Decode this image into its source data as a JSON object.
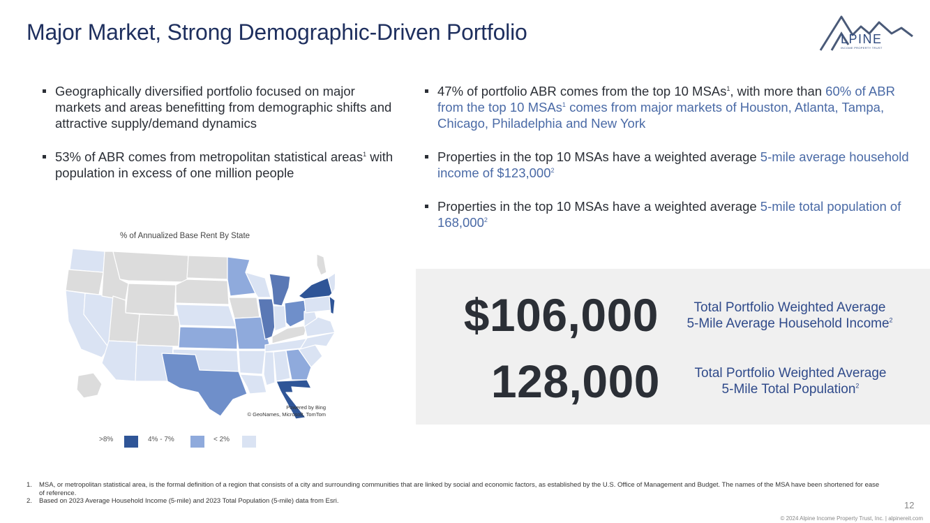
{
  "header": {
    "title": "Major Market, Strong Demographic-Driven Portfolio"
  },
  "logo": {
    "word": "LPINE",
    "subtitle": "INCOME PROPERTY TRUST"
  },
  "left_bullets": [
    {
      "text": "Geographically diversified portfolio focused on major markets and areas benefitting from demographic shifts and attractive supply/demand dynamics"
    },
    {
      "text": "53% of ABR comes from metropolitan statistical areas",
      "sup": "1",
      "text_after": " with population in excess of one million people"
    }
  ],
  "right_bullets": [
    {
      "part1": "47% of portfolio ABR comes from the top 10 MSAs",
      "sup1": "1",
      "part2": ", with more than ",
      "hl1": "60% of ABR from the top 10 MSAs",
      "sup2": "1",
      "hl2": " comes from major markets of Houston, Atlanta, Tampa, Chicago, Philadelphia and New York"
    },
    {
      "part1": "Properties in the top 10 MSAs have a weighted average ",
      "hl1": "5-mile average household income of $123,000",
      "sup1": "2"
    },
    {
      "part1": "Properties in the top 10 MSAs have a weighted average ",
      "hl1": "5-mile total population of 168,000",
      "sup1": "2"
    }
  ],
  "map": {
    "title": "% of Annualized Base Rent By State",
    "credit_line1": "Powered by Bing",
    "credit_line2": "© GeoNames, Microsoft, TomTom",
    "colors": {
      "gt8": "#2f5597",
      "mid": "#8faadc",
      "lt2": "#dae3f3",
      "none": "#dcdcdc"
    }
  },
  "legend": [
    {
      "label": ">8%",
      "color": "#2f5597"
    },
    {
      "label": "4% - 7%",
      "color": "#8faadc"
    },
    {
      "label": "< 2%",
      "color": "#dae3f3"
    }
  ],
  "stats": [
    {
      "value": "$106,000",
      "label_line1": "Total Portfolio Weighted Average",
      "label_line2": "5-Mile Average Household Income",
      "sup": "2"
    },
    {
      "value": "128,000",
      "label_line1": "Total Portfolio Weighted Average",
      "label_line2": "5-Mile Total Population",
      "sup": "2"
    }
  ],
  "footnotes": [
    {
      "num": "1.",
      "text": "MSA, or metropolitan statistical area, is the formal definition of a region that consists of a city and surrounding communities that are linked by social and economic factors, as established by the U.S. Office of Management and Budget. The names of the MSA have been shortened for ease of reference."
    },
    {
      "num": "2.",
      "text": "Based on 2023 Average Household Income (5-mile) and 2023 Total Population (5-mile) data from Esri."
    }
  ],
  "page_number": "12",
  "copyright": "© 2024 Alpine Income Property Trust, Inc.  |  alpinereit.com"
}
